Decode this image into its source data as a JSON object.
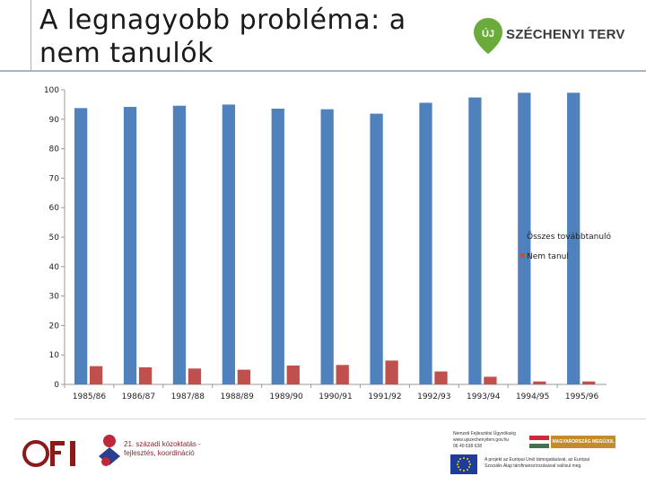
{
  "slide": {
    "title_line1": "A legnagyobb probléma: a",
    "title_line2": "nem tanulók"
  },
  "logos": {
    "szechenyi_text": "SZÉCHENYI TERV",
    "szechenyi_badge": "ÚJ",
    "ofi_text": "OFI",
    "tamop_line1": "21. századi közoktatás -",
    "tamop_line2": "fejlesztés, koordináció",
    "contact_line1": "Nemzeti Fejlesztési Ügynökség",
    "contact_line2": "www.ujszechenyiterv.gov.hu",
    "contact_line3": "06 40 638 638",
    "gov_badge": "MAGYARORSZÁG MEGÚJUL",
    "eu_line1": "A projekt az Európai Unió támogatásával, az Európai",
    "eu_line2": "Szociális Alap társfinanszírozásával valósul meg."
  },
  "colors": {
    "series1": "#4f81bd",
    "series2": "#c0504d",
    "szechenyi_green": "#6bab3b",
    "ofi_red": "#8b1a1a"
  },
  "chart_data": {
    "type": "bar",
    "title": "",
    "xlabel": "",
    "ylabel": "",
    "ylim": [
      0,
      100
    ],
    "yticks": [
      0,
      10,
      20,
      30,
      40,
      50,
      60,
      70,
      80,
      90,
      100
    ],
    "grid": false,
    "legend_position": "right",
    "categories": [
      "1985/86",
      "1986/87",
      "1987/88",
      "1988/89",
      "1989/90",
      "1990/91",
      "1991/92",
      "1992/93",
      "1993/94",
      "1994/95",
      "1995/96"
    ],
    "series": [
      {
        "name": "Összes továbbtanuló",
        "values": [
          93.8,
          94.2,
          94.6,
          95.0,
          93.6,
          93.4,
          91.9,
          95.6,
          97.4,
          99.0,
          99.0
        ]
      },
      {
        "name": "Nem tanul",
        "values": [
          6.2,
          5.8,
          5.4,
          5.0,
          6.4,
          6.6,
          8.1,
          4.4,
          2.6,
          1.0,
          1.0
        ]
      }
    ]
  }
}
